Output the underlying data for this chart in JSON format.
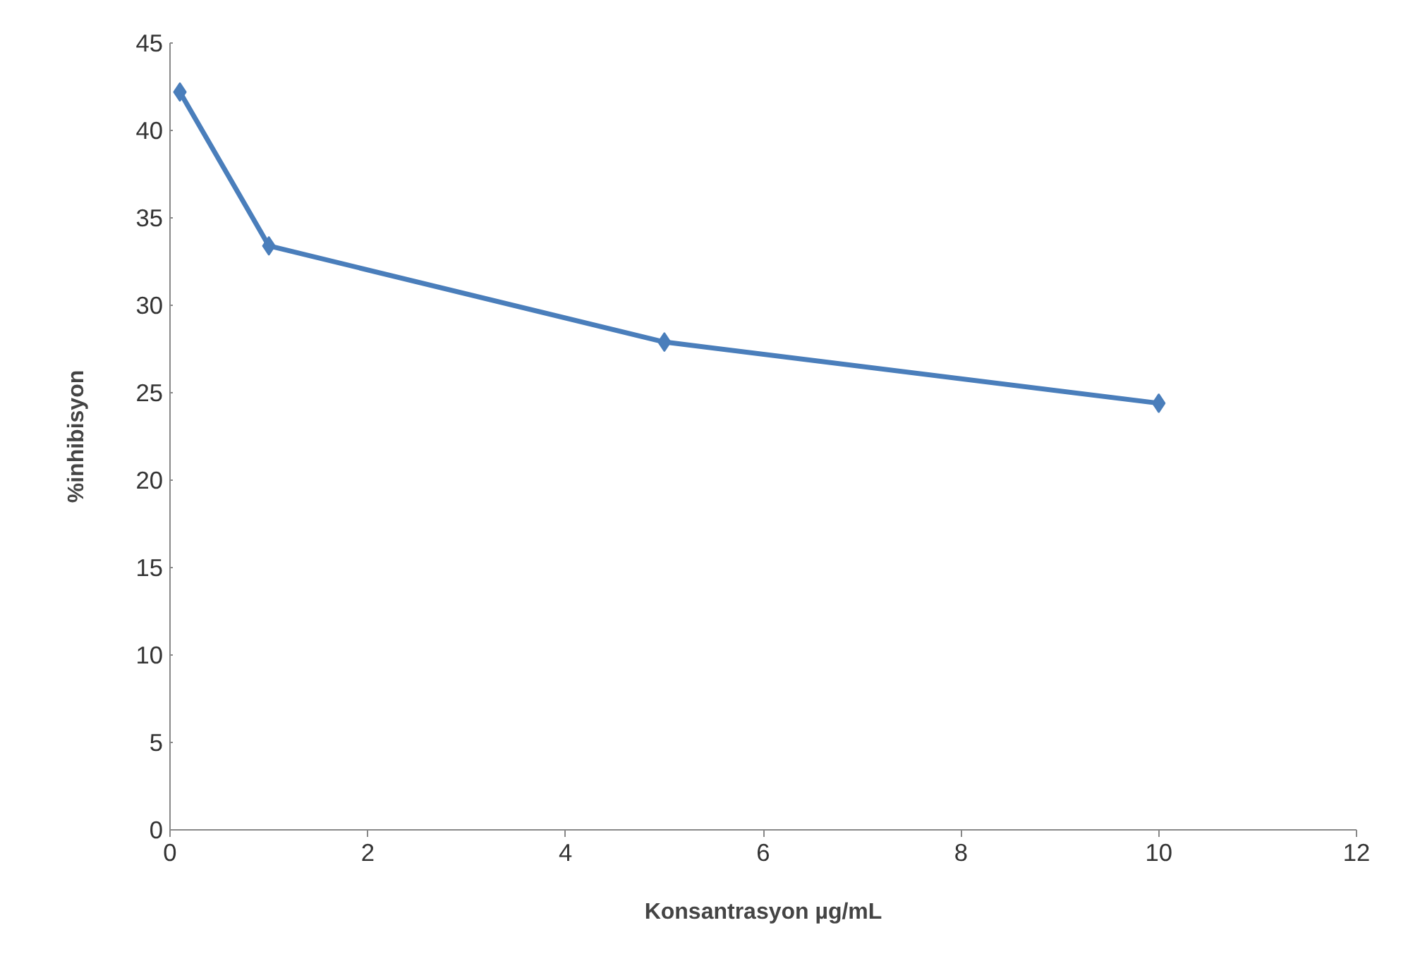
{
  "chart_data": {
    "type": "line",
    "xlabel": "Konsantrasyon µg/mL",
    "ylabel": "%inhibisyon",
    "x": [
      0.1,
      1,
      5,
      10
    ],
    "series": [
      {
        "color": "#4a7ebb",
        "values": [
          42.2,
          33.4,
          27.9,
          24.4
        ]
      }
    ],
    "xlim": [
      0,
      12
    ],
    "xticks": [
      0,
      2,
      4,
      6,
      8,
      10,
      12
    ],
    "ylim": [
      0,
      45
    ],
    "yticks": [
      0,
      5,
      10,
      15,
      20,
      25,
      30,
      35,
      40,
      45
    ],
    "grid": false,
    "marker": "diamond",
    "line_style": "solid"
  }
}
